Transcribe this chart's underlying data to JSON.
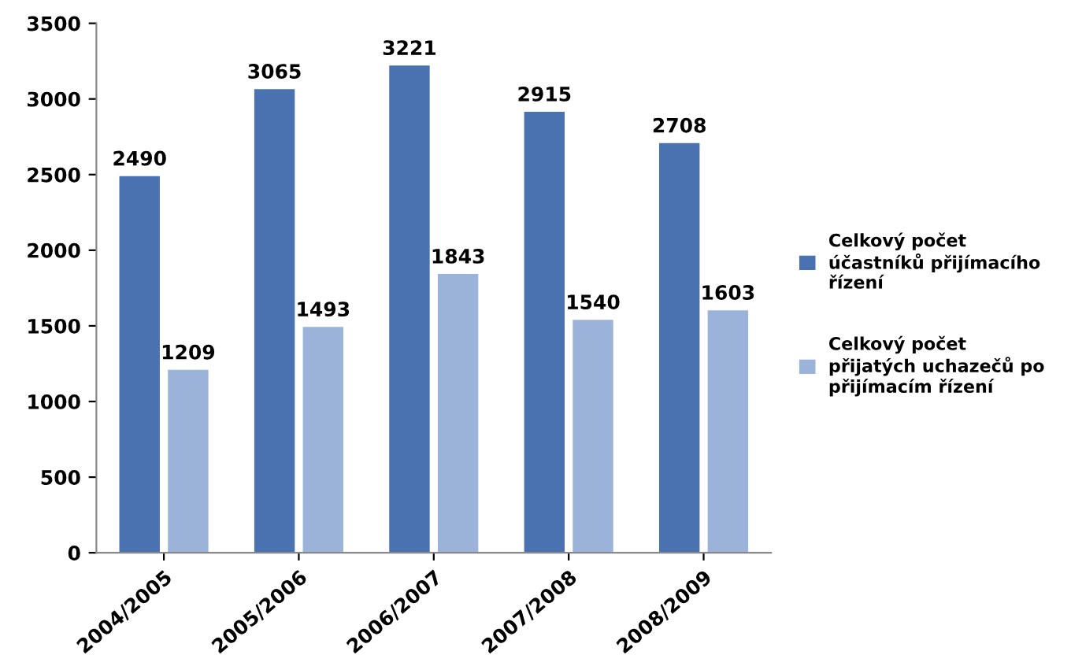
{
  "chart_data": {
    "type": "bar",
    "categories": [
      "2004/2005",
      "2005/2006",
      "2006/2007",
      "2007/2008",
      "2008/2009"
    ],
    "series": [
      {
        "name": "Celkový počet účastníků přijímacího řízení",
        "color": "#4a72b0",
        "values": [
          2490,
          3065,
          3221,
          2915,
          2708
        ]
      },
      {
        "name": "Celkový počet přijatých uchazečů po přijímacím řízení",
        "color": "#9bb3d9",
        "values": [
          1209,
          1493,
          1843,
          1540,
          1603
        ]
      }
    ],
    "ylim": [
      0,
      3500
    ],
    "yticks": [
      0,
      500,
      1000,
      1500,
      2000,
      2500,
      3000,
      3500
    ],
    "data_labels": true,
    "legend": "right",
    "grid": false
  }
}
